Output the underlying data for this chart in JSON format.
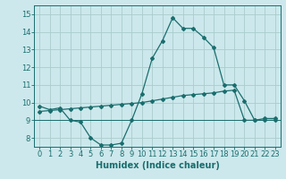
{
  "xlabel": "Humidex (Indice chaleur)",
  "bg_color": "#cce8ec",
  "grid_color": "#aacccc",
  "line_color": "#1a6e6e",
  "xlim": [
    -0.5,
    23.5
  ],
  "ylim": [
    7.5,
    15.5
  ],
  "yticks": [
    8,
    9,
    10,
    11,
    12,
    13,
    14,
    15
  ],
  "xticks": [
    0,
    1,
    2,
    3,
    4,
    5,
    6,
    7,
    8,
    9,
    10,
    11,
    12,
    13,
    14,
    15,
    16,
    17,
    18,
    19,
    20,
    21,
    22,
    23
  ],
  "curve1_x": [
    0,
    1,
    2,
    3,
    4,
    5,
    6,
    7,
    8,
    9,
    10,
    11,
    12,
    13,
    14,
    15,
    16,
    17,
    18,
    19,
    20,
    21,
    22,
    23
  ],
  "curve1_y": [
    9.8,
    9.6,
    9.7,
    9.0,
    8.9,
    8.0,
    7.6,
    7.6,
    7.7,
    9.0,
    10.5,
    12.5,
    13.5,
    14.8,
    14.2,
    14.2,
    13.7,
    13.1,
    11.0,
    11.0,
    10.1,
    9.0,
    9.1,
    9.1
  ],
  "curve2_x": [
    0,
    1,
    2,
    3,
    4,
    5,
    6,
    7,
    8,
    9,
    10,
    11,
    12,
    13,
    14,
    15,
    16,
    17,
    18,
    19,
    20,
    21,
    22,
    23
  ],
  "curve2_y": [
    9.5,
    9.55,
    9.6,
    9.65,
    9.7,
    9.75,
    9.8,
    9.85,
    9.9,
    9.95,
    10.0,
    10.1,
    10.2,
    10.3,
    10.4,
    10.45,
    10.5,
    10.55,
    10.65,
    10.7,
    9.0,
    9.0,
    9.0,
    9.0
  ],
  "hline_y": 9.0,
  "tick_fontsize": 6,
  "xlabel_fontsize": 7,
  "marker_size": 2.0,
  "line_width": 0.9
}
